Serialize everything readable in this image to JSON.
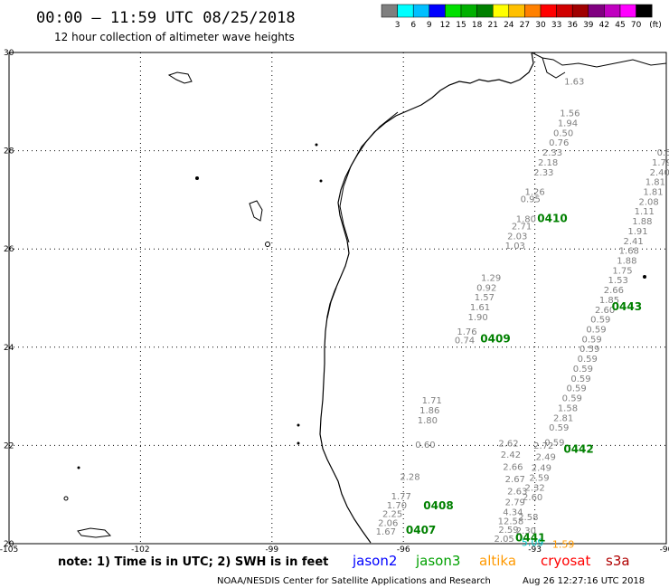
{
  "header": {
    "title": "00:00 – 11:59 UTC 08/25/2018",
    "subtitle": "12 hour collection of altimeter wave heights"
  },
  "colorbar": {
    "unit": "(ft)",
    "labels": [
      "3",
      "6",
      "9",
      "12",
      "15",
      "18",
      "21",
      "24",
      "27",
      "30",
      "33",
      "36",
      "39",
      "42",
      "45",
      "70"
    ],
    "colors": [
      "#7f7f7f",
      "#00ffff",
      "#00bfff",
      "#0000ff",
      "#00e000",
      "#00b000",
      "#008000",
      "#ffff00",
      "#ffc000",
      "#ff8000",
      "#ff0000",
      "#d00000",
      "#a00000",
      "#800080",
      "#c000c0",
      "#ff00ff",
      "#000000"
    ]
  },
  "map": {
    "axes": {
      "lon_labels": [
        "-105",
        "-102",
        "-99",
        "-96",
        "-93",
        "-90"
      ],
      "lat_labels": [
        "30",
        "28",
        "26",
        "24",
        "22",
        "20"
      ],
      "lon_range": [
        -105,
        -90
      ],
      "lat_range": [
        20,
        30
      ]
    },
    "pass_labels": [
      {
        "text": "0410",
        "lon": -92.6,
        "lat": 26.55
      },
      {
        "text": "0443",
        "lon": -90.9,
        "lat": 24.75
      },
      {
        "text": "0409",
        "lon": -93.9,
        "lat": 24.1
      },
      {
        "text": "0442",
        "lon": -92.0,
        "lat": 21.85
      },
      {
        "text": "0408",
        "lon": -95.2,
        "lat": 20.7
      },
      {
        "text": "0407",
        "lon": -95.6,
        "lat": 20.2
      },
      {
        "text": "0441",
        "lon": -93.1,
        "lat": 20.05
      }
    ],
    "wave_heights": [
      {
        "v": "1.63",
        "lon": -92.1,
        "lat": 29.35
      },
      {
        "v": "1.56",
        "lon": -92.2,
        "lat": 28.7
      },
      {
        "v": "1.94",
        "lon": -92.25,
        "lat": 28.5
      },
      {
        "v": "0.50",
        "lon": -92.35,
        "lat": 28.3
      },
      {
        "v": "0.76",
        "lon": -92.45,
        "lat": 28.1
      },
      {
        "v": "2.33",
        "lon": -92.6,
        "lat": 27.9
      },
      {
        "v": "2.18",
        "lon": -92.7,
        "lat": 27.7
      },
      {
        "v": "2.33",
        "lon": -92.8,
        "lat": 27.5
      },
      {
        "v": "1.26",
        "lon": -93.0,
        "lat": 27.1
      },
      {
        "v": "0.95",
        "lon": -93.1,
        "lat": 26.95
      },
      {
        "v": "1.80",
        "lon": -93.2,
        "lat": 26.55
      },
      {
        "v": "2.71",
        "lon": -93.3,
        "lat": 26.4
      },
      {
        "v": "2.03",
        "lon": -93.4,
        "lat": 26.2
      },
      {
        "v": "1.03",
        "lon": -93.45,
        "lat": 26.0
      },
      {
        "v": "1.29",
        "lon": -94.0,
        "lat": 25.35
      },
      {
        "v": "0.92",
        "lon": -94.1,
        "lat": 25.15
      },
      {
        "v": "1.57",
        "lon": -94.15,
        "lat": 24.95
      },
      {
        "v": "1.61",
        "lon": -94.25,
        "lat": 24.75
      },
      {
        "v": "1.90",
        "lon": -94.3,
        "lat": 24.55
      },
      {
        "v": "1.76",
        "lon": -94.55,
        "lat": 24.25
      },
      {
        "v": "0.74",
        "lon": -94.6,
        "lat": 24.08
      },
      {
        "v": "1.71",
        "lon": -95.35,
        "lat": 22.85
      },
      {
        "v": "1.86",
        "lon": -95.4,
        "lat": 22.65
      },
      {
        "v": "1.80",
        "lon": -95.45,
        "lat": 22.45
      },
      {
        "v": "0.60",
        "lon": -95.5,
        "lat": 21.95
      },
      {
        "v": "2.28",
        "lon": -95.85,
        "lat": 21.3
      },
      {
        "v": "1.77",
        "lon": -96.05,
        "lat": 20.9
      },
      {
        "v": "1.70",
        "lon": -96.15,
        "lat": 20.72
      },
      {
        "v": "2.25",
        "lon": -96.25,
        "lat": 20.54
      },
      {
        "v": "2.06",
        "lon": -96.35,
        "lat": 20.36
      },
      {
        "v": "1.67",
        "lon": -96.4,
        "lat": 20.18
      },
      {
        "v": "2.62",
        "lon": -93.6,
        "lat": 21.98
      },
      {
        "v": "2.42",
        "lon": -93.55,
        "lat": 21.75
      },
      {
        "v": "2.66",
        "lon": -93.5,
        "lat": 21.5
      },
      {
        "v": "2.67",
        "lon": -93.45,
        "lat": 21.25
      },
      {
        "v": "2.63",
        "lon": -93.4,
        "lat": 21.0
      },
      {
        "v": "2.79",
        "lon": -93.45,
        "lat": 20.78
      },
      {
        "v": "4.34",
        "lon": -93.5,
        "lat": 20.58
      },
      {
        "v": "12.58",
        "lon": -93.55,
        "lat": 20.4
      },
      {
        "v": "2.59",
        "lon": -93.6,
        "lat": 20.22
      },
      {
        "v": "2.05",
        "lon": -93.7,
        "lat": 20.04
      },
      {
        "v": "2.72",
        "lon": -92.8,
        "lat": 21.93
      },
      {
        "v": "2.49",
        "lon": -92.75,
        "lat": 21.7
      },
      {
        "v": "2.49",
        "lon": -92.85,
        "lat": 21.48
      },
      {
        "v": "2.59",
        "lon": -92.9,
        "lat": 21.28
      },
      {
        "v": "2.32",
        "lon": -93.0,
        "lat": 21.08
      },
      {
        "v": "2.60",
        "lon": -93.05,
        "lat": 20.88
      },
      {
        "v": "2.58",
        "lon": -93.15,
        "lat": 20.48
      },
      {
        "v": "2.30",
        "lon": -93.2,
        "lat": 20.2
      },
      {
        "v": "0.59",
        "lon": -92.55,
        "lat": 22.0
      },
      {
        "v": "0.59",
        "lon": -92.45,
        "lat": 22.3
      },
      {
        "v": "2.81",
        "lon": -92.35,
        "lat": 22.5
      },
      {
        "v": "1.58",
        "lon": -92.25,
        "lat": 22.7
      },
      {
        "v": "0.59",
        "lon": -92.15,
        "lat": 22.9
      },
      {
        "v": "0.59",
        "lon": -92.05,
        "lat": 23.1
      },
      {
        "v": "0.59",
        "lon": -91.95,
        "lat": 23.3
      },
      {
        "v": "0.59",
        "lon": -91.9,
        "lat": 23.5
      },
      {
        "v": "0.59",
        "lon": -91.8,
        "lat": 23.7
      },
      {
        "v": "0.59",
        "lon": -91.75,
        "lat": 23.9
      },
      {
        "v": "0.59",
        "lon": -91.7,
        "lat": 24.1
      },
      {
        "v": "0.59",
        "lon": -91.6,
        "lat": 24.3
      },
      {
        "v": "0.59",
        "lon": -91.5,
        "lat": 24.5
      },
      {
        "v": "2.60",
        "lon": -91.4,
        "lat": 24.7
      },
      {
        "v": "1.85",
        "lon": -91.3,
        "lat": 24.9
      },
      {
        "v": "2.66",
        "lon": -91.2,
        "lat": 25.1
      },
      {
        "v": "1.53",
        "lon": -91.1,
        "lat": 25.3
      },
      {
        "v": "1.75",
        "lon": -91.0,
        "lat": 25.5
      },
      {
        "v": "1.88",
        "lon": -90.9,
        "lat": 25.7
      },
      {
        "v": "1.68",
        "lon": -90.85,
        "lat": 25.9
      },
      {
        "v": "2.41",
        "lon": -90.75,
        "lat": 26.1
      },
      {
        "v": "1.91",
        "lon": -90.65,
        "lat": 26.3
      },
      {
        "v": "1.88",
        "lon": -90.55,
        "lat": 26.5
      },
      {
        "v": "1.11",
        "lon": -90.5,
        "lat": 26.7
      },
      {
        "v": "2.08",
        "lon": -90.4,
        "lat": 26.9
      },
      {
        "v": "1.81",
        "lon": -90.3,
        "lat": 27.1
      },
      {
        "v": "1.81",
        "lon": -90.25,
        "lat": 27.3
      },
      {
        "v": "2.40",
        "lon": -90.15,
        "lat": 27.5
      },
      {
        "v": "1.79",
        "lon": -90.1,
        "lat": 27.7
      },
      {
        "v": "0.5",
        "lon": -90.05,
        "lat": 27.9
      }
    ],
    "special_labels": [
      {
        "text": "5.09",
        "color": "#00c8c8",
        "lon": -93.05,
        "lat": 19.95
      },
      {
        "text": "1.59",
        "color": "#ff9900",
        "lon": -92.35,
        "lat": 19.92
      }
    ]
  },
  "footer": {
    "note": "note:  1) Time is in UTC;  2) SWH is in feet",
    "satellites": [
      {
        "name": "jason2",
        "color": "#0000ff"
      },
      {
        "name": "jason3",
        "color": "#00a000"
      },
      {
        "name": "altika",
        "color": "#ff9900"
      },
      {
        "name": "cryosat",
        "color": "#ff0000"
      },
      {
        "name": "s3a",
        "color": "#b00000"
      }
    ],
    "credit": "NOAA/NESDIS Center for Satellite Applications and Research",
    "timestamp": "Aug 26 12:27:16 UTC 2018"
  }
}
